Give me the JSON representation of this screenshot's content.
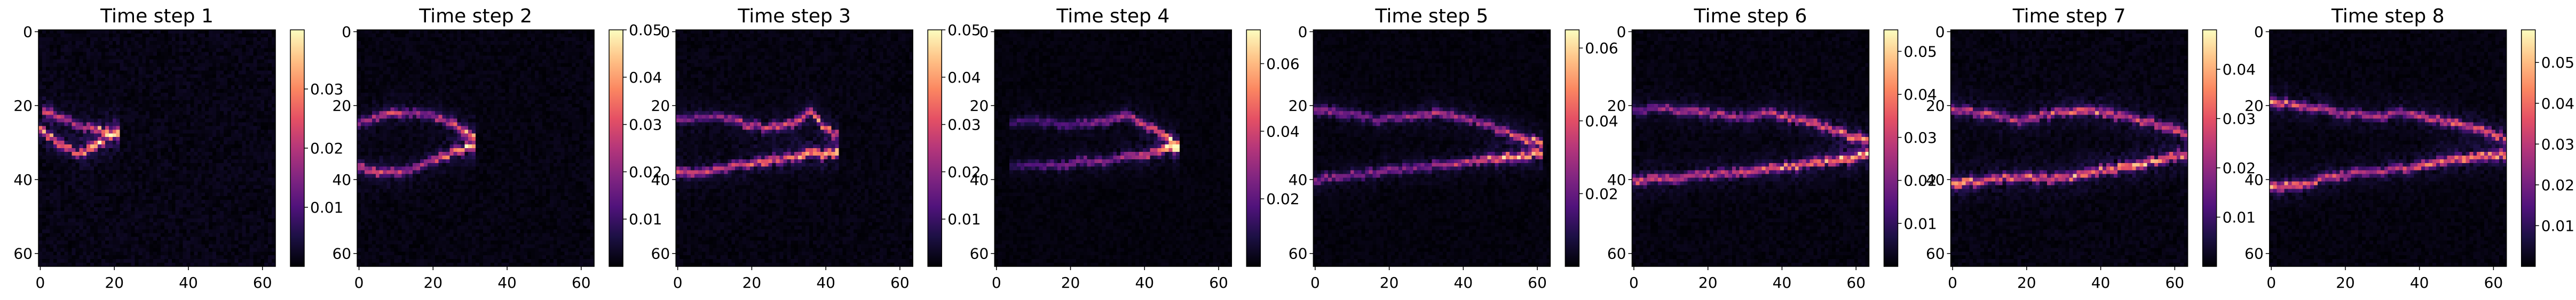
{
  "figure": {
    "colormap_stops": [
      "#000004",
      "#1c1044",
      "#4f127b",
      "#812581",
      "#b5367a",
      "#e55064",
      "#fb8761",
      "#fec287",
      "#fcfdbf"
    ],
    "background_color": "#ffffff"
  },
  "chart_data": [
    {
      "type": "heatmap",
      "title": "Time step 1",
      "xlabel": "",
      "ylabel": "",
      "xlim": [
        0,
        64
      ],
      "ylim": [
        64,
        0
      ],
      "x_ticks": [
        "0",
        "20",
        "40",
        "60"
      ],
      "y_ticks": [
        "0",
        "20",
        "40",
        "60"
      ],
      "colorbar": {
        "vmin": 0,
        "vmax": 0.04,
        "ticks": [
          "0.01",
          "0.02",
          "0.03"
        ],
        "tick_values": [
          0.01,
          0.02,
          0.03
        ]
      },
      "peak_value": 0.04,
      "fronts": [
        {
          "x_start": 0,
          "x_end": 20,
          "y_center": [
            27,
            29,
            31,
            33,
            32,
            30,
            27
          ],
          "amplitude": [
            0.035,
            0.033,
            0.03,
            0.028,
            0.04,
            0.037,
            0.02
          ]
        },
        {
          "x_start": 2,
          "x_end": 20,
          "y_center": [
            22,
            23,
            25,
            26,
            27,
            28
          ],
          "amplitude": [
            0.025,
            0.022,
            0.02,
            0.022,
            0.03,
            0.035
          ]
        }
      ]
    },
    {
      "type": "heatmap",
      "title": "Time step 2",
      "xlabel": "",
      "ylabel": "",
      "xlim": [
        0,
        64
      ],
      "ylim": [
        64,
        0
      ],
      "x_ticks": [
        "0",
        "20",
        "40",
        "60"
      ],
      "y_ticks": [
        "0",
        "20",
        "40",
        "60"
      ],
      "colorbar": {
        "vmin": 0,
        "vmax": 0.05,
        "ticks": [
          "0.01",
          "0.02",
          "0.03",
          "0.04",
          "0.05"
        ],
        "tick_values": [
          0.01,
          0.02,
          0.03,
          0.04,
          0.05
        ]
      },
      "peak_value": 0.05,
      "fronts": [
        {
          "x_start": 0,
          "x_end": 30,
          "y_center": [
            37,
            38,
            38,
            37,
            35,
            33,
            31
          ],
          "amplitude": [
            0.035,
            0.03,
            0.028,
            0.025,
            0.03,
            0.04,
            0.05
          ]
        },
        {
          "x_start": 0,
          "x_end": 30,
          "y_center": [
            25,
            23,
            22,
            22,
            23,
            25,
            28
          ],
          "amplitude": [
            0.02,
            0.028,
            0.03,
            0.022,
            0.025,
            0.035,
            0.045
          ]
        }
      ]
    },
    {
      "type": "heatmap",
      "title": "Time step 3",
      "xlabel": "",
      "ylabel": "",
      "xlim": [
        0,
        64
      ],
      "ylim": [
        64,
        0
      ],
      "x_ticks": [
        "0",
        "20",
        "40",
        "60"
      ],
      "y_ticks": [
        "0",
        "20",
        "40",
        "60"
      ],
      "colorbar": {
        "vmin": 0,
        "vmax": 0.05,
        "ticks": [
          "0.01",
          "0.02",
          "0.03",
          "0.04",
          "0.05"
        ],
        "tick_values": [
          0.01,
          0.02,
          0.03,
          0.04,
          0.05
        ]
      },
      "peak_value": 0.05,
      "fronts": [
        {
          "x_start": 0,
          "x_end": 42,
          "y_center": [
            38,
            38,
            37,
            36,
            35,
            34,
            33,
            33
          ],
          "amplitude": [
            0.035,
            0.03,
            0.028,
            0.032,
            0.04,
            0.035,
            0.045,
            0.05
          ]
        },
        {
          "x_start": 0,
          "x_end": 42,
          "y_center": [
            24,
            23,
            23,
            25,
            26,
            25,
            22,
            28
          ],
          "amplitude": [
            0.02,
            0.018,
            0.02,
            0.03,
            0.028,
            0.03,
            0.04,
            0.035
          ]
        }
      ]
    },
    {
      "type": "heatmap",
      "title": "Time step 4",
      "xlabel": "",
      "ylabel": "",
      "xlim": [
        0,
        64
      ],
      "ylim": [
        64,
        0
      ],
      "x_ticks": [
        "0",
        "20",
        "40",
        "60"
      ],
      "y_ticks": [
        "0",
        "20",
        "40",
        "60"
      ],
      "colorbar": {
        "vmin": 0,
        "vmax": 0.07,
        "ticks": [
          "0.02",
          "0.04",
          "0.06"
        ],
        "tick_values": [
          0.02,
          0.04,
          0.06
        ]
      },
      "peak_value": 0.07,
      "fronts": [
        {
          "x_start": 5,
          "x_end": 48,
          "y_center": [
            36,
            36,
            36,
            35,
            35,
            34,
            33,
            31
          ],
          "amplitude": [
            0.015,
            0.02,
            0.025,
            0.03,
            0.028,
            0.035,
            0.05,
            0.07
          ]
        },
        {
          "x_start": 5,
          "x_end": 48,
          "y_center": [
            24,
            24,
            25,
            25,
            24,
            23,
            26,
            30
          ],
          "amplitude": [
            0.015,
            0.02,
            0.018,
            0.025,
            0.03,
            0.035,
            0.045,
            0.06
          ]
        }
      ]
    },
    {
      "type": "heatmap",
      "title": "Time step 5",
      "xlabel": "",
      "ylabel": "",
      "xlim": [
        0,
        64
      ],
      "ylim": [
        64,
        0
      ],
      "x_ticks": [
        "0",
        "20",
        "40",
        "60"
      ],
      "y_ticks": [
        "0",
        "20",
        "40",
        "60"
      ],
      "colorbar": {
        "vmin": 0,
        "vmax": 0.065,
        "ticks": [
          "0.02",
          "0.04",
          "0.06"
        ],
        "tick_values": [
          0.02,
          0.04,
          0.06
        ]
      },
      "peak_value": 0.065,
      "fronts": [
        {
          "x_start": 0,
          "x_end": 60,
          "y_center": [
            40,
            39,
            38,
            37,
            36,
            35,
            34,
            33
          ],
          "amplitude": [
            0.03,
            0.025,
            0.03,
            0.028,
            0.03,
            0.04,
            0.055,
            0.06
          ]
        },
        {
          "x_start": 0,
          "x_end": 60,
          "y_center": [
            21,
            22,
            24,
            23,
            22,
            24,
            27,
            30
          ],
          "amplitude": [
            0.03,
            0.028,
            0.025,
            0.03,
            0.035,
            0.03,
            0.04,
            0.05
          ]
        }
      ]
    },
    {
      "type": "heatmap",
      "title": "Time step 6",
      "xlabel": "",
      "ylabel": "",
      "xlim": [
        0,
        64
      ],
      "ylim": [
        64,
        0
      ],
      "x_ticks": [
        "0",
        "20",
        "40",
        "60"
      ],
      "y_ticks": [
        "0",
        "20",
        "40",
        "60"
      ],
      "colorbar": {
        "vmin": 0,
        "vmax": 0.055,
        "ticks": [
          "0.01",
          "0.02",
          "0.03",
          "0.04",
          "0.05"
        ],
        "tick_values": [
          0.01,
          0.02,
          0.03,
          0.04,
          0.05
        ]
      },
      "peak_value": 0.055,
      "fronts": [
        {
          "x_start": 0,
          "x_end": 64,
          "y_center": [
            40,
            40,
            39,
            38,
            37,
            36,
            35,
            33
          ],
          "amplitude": [
            0.04,
            0.035,
            0.03,
            0.035,
            0.04,
            0.045,
            0.05,
            0.055
          ]
        },
        {
          "x_start": 0,
          "x_end": 64,
          "y_center": [
            21,
            21,
            22,
            23,
            22,
            24,
            27,
            30
          ],
          "amplitude": [
            0.02,
            0.025,
            0.03,
            0.025,
            0.03,
            0.035,
            0.04,
            0.045
          ]
        }
      ]
    },
    {
      "type": "heatmap",
      "title": "Time step 7",
      "xlabel": "",
      "ylabel": "",
      "xlim": [
        0,
        64
      ],
      "ylim": [
        64,
        0
      ],
      "x_ticks": [
        "0",
        "20",
        "40",
        "60"
      ],
      "y_ticks": [
        "0",
        "20",
        "40",
        "60"
      ],
      "colorbar": {
        "vmin": 0,
        "vmax": 0.048,
        "ticks": [
          "0.01",
          "0.02",
          "0.03",
          "0.04"
        ],
        "tick_values": [
          0.01,
          0.02,
          0.03,
          0.04
        ]
      },
      "peak_value": 0.048,
      "fronts": [
        {
          "x_start": 0,
          "x_end": 64,
          "y_center": [
            41,
            40,
            39,
            40,
            38,
            37,
            35,
            33
          ],
          "amplitude": [
            0.045,
            0.035,
            0.03,
            0.035,
            0.04,
            0.045,
            0.04,
            0.035
          ]
        },
        {
          "x_start": 0,
          "x_end": 64,
          "y_center": [
            21,
            22,
            24,
            22,
            21,
            23,
            25,
            28
          ],
          "amplitude": [
            0.03,
            0.028,
            0.025,
            0.03,
            0.035,
            0.03,
            0.03,
            0.035
          ]
        }
      ]
    },
    {
      "type": "heatmap",
      "title": "Time step 8",
      "xlabel": "",
      "ylabel": "",
      "xlim": [
        0,
        64
      ],
      "ylim": [
        64,
        0
      ],
      "x_ticks": [
        "0",
        "20",
        "40",
        "60"
      ],
      "y_ticks": [
        "0",
        "20",
        "40",
        "60"
      ],
      "colorbar": {
        "vmin": 0,
        "vmax": 0.058,
        "ticks": [
          "0.01",
          "0.02",
          "0.03",
          "0.04",
          "0.05"
        ],
        "tick_values": [
          0.01,
          0.02,
          0.03,
          0.04,
          0.05
        ]
      },
      "peak_value": 0.058,
      "fronts": [
        {
          "x_start": 0,
          "x_end": 64,
          "y_center": [
            42,
            41,
            39,
            38,
            37,
            35,
            34,
            33
          ],
          "amplitude": [
            0.05,
            0.04,
            0.035,
            0.03,
            0.04,
            0.045,
            0.05,
            0.045
          ]
        },
        {
          "x_start": 0,
          "x_end": 64,
          "y_center": [
            19,
            20,
            22,
            23,
            22,
            24,
            26,
            29
          ],
          "amplitude": [
            0.045,
            0.035,
            0.03,
            0.028,
            0.03,
            0.035,
            0.04,
            0.04
          ]
        }
      ]
    }
  ]
}
